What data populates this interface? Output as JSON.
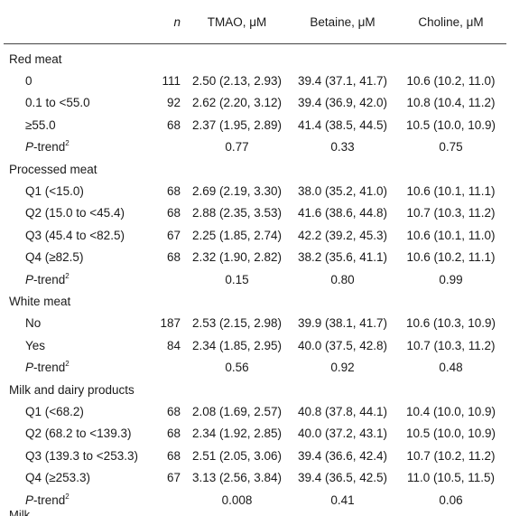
{
  "header": {
    "label": "",
    "n": "n",
    "tmao": "TMAO, μM",
    "betaine": "Betaine, μM",
    "choline": "Choline, μM"
  },
  "groups": [
    {
      "title": "Red meat",
      "rows": [
        {
          "label": "0",
          "n": "111",
          "tmao": "2.50 (2.13, 2.93)",
          "betaine": "39.4 (37.1, 41.7)",
          "choline": "10.6 (10.2, 11.0)"
        },
        {
          "label": "0.1 to <55.0",
          "n": "92",
          "tmao": "2.62 (2.20, 3.12)",
          "betaine": "39.4 (36.9, 42.0)",
          "choline": "10.8 (10.4, 11.2)"
        },
        {
          "label": "≥55.0",
          "n": "68",
          "tmao": "2.37 (1.95, 2.89)",
          "betaine": "41.4 (38.5, 44.5)",
          "choline": "10.5 (10.0, 10.9)"
        }
      ],
      "ptrend": {
        "p": "P",
        "rest": "-trend",
        "sup": "2",
        "tmao": "0.77",
        "betaine": "0.33",
        "choline": "0.75"
      }
    },
    {
      "title": "Processed meat",
      "rows": [
        {
          "label": "Q1 (<15.0)",
          "n": "68",
          "tmao": "2.69 (2.19, 3.30)",
          "betaine": "38.0 (35.2, 41.0)",
          "choline": "10.6 (10.1, 11.1)"
        },
        {
          "label": "Q2 (15.0 to <45.4)",
          "n": "68",
          "tmao": "2.88 (2.35, 3.53)",
          "betaine": "41.6 (38.6, 44.8)",
          "choline": "10.7 (10.3, 11.2)"
        },
        {
          "label": "Q3 (45.4 to <82.5)",
          "n": "67",
          "tmao": "2.25 (1.85, 2.74)",
          "betaine": "42.2 (39.2, 45.3)",
          "choline": "10.6 (10.1, 11.0)"
        },
        {
          "label": "Q4 (≥82.5)",
          "n": "68",
          "tmao": "2.32 (1.90, 2.82)",
          "betaine": "38.2 (35.6, 41.1)",
          "choline": "10.6 (10.2, 11.1)"
        }
      ],
      "ptrend": {
        "p": "P",
        "rest": "-trend",
        "sup": "2",
        "tmao": "0.15",
        "betaine": "0.80",
        "choline": "0.99"
      }
    },
    {
      "title": "White meat",
      "rows": [
        {
          "label": "No",
          "n": "187",
          "tmao": "2.53 (2.15, 2.98)",
          "betaine": "39.9 (38.1, 41.7)",
          "choline": "10.6 (10.3, 10.9)"
        },
        {
          "label": "Yes",
          "n": "84",
          "tmao": "2.34 (1.85, 2.95)",
          "betaine": "40.0 (37.5, 42.8)",
          "choline": "10.7 (10.3, 11.2)"
        }
      ],
      "ptrend": {
        "p": "P",
        "rest": "-trend",
        "sup": "2",
        "tmao": "0.56",
        "betaine": "0.92",
        "choline": "0.48"
      }
    },
    {
      "title": "Milk and dairy products",
      "rows": [
        {
          "label": "Q1 (<68.2)",
          "n": "68",
          "tmao": "2.08 (1.69, 2.57)",
          "betaine": "40.8 (37.8, 44.1)",
          "choline": "10.4 (10.0, 10.9)"
        },
        {
          "label": "Q2 (68.2 to <139.3)",
          "n": "68",
          "tmao": "2.34 (1.92, 2.85)",
          "betaine": "40.0 (37.2, 43.1)",
          "choline": "10.5 (10.0, 10.9)"
        },
        {
          "label": "Q3 (139.3 to <253.3)",
          "n": "68",
          "tmao": "2.51 (2.05, 3.06)",
          "betaine": "39.4 (36.6, 42.4)",
          "choline": "10.7 (10.2, 11.2)"
        },
        {
          "label": "Q4 (≥253.3)",
          "n": "67",
          "tmao": "3.13 (2.56, 3.84)",
          "betaine": "39.4 (36.5, 42.5)",
          "choline": "11.0 (10.5, 11.5)"
        }
      ],
      "ptrend": {
        "p": "P",
        "rest": "-trend",
        "sup": "2",
        "tmao": "0.008",
        "betaine": "0.41",
        "choline": "0.06"
      }
    }
  ],
  "cutoff_text": "Milk"
}
